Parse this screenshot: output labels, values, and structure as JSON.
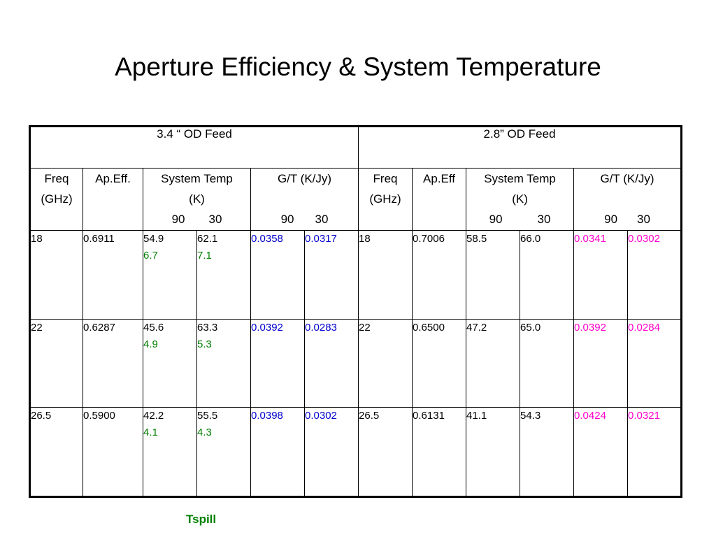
{
  "title": "Aperture Efficiency & System Temperature",
  "feeds": {
    "left": "3.4 “ OD Feed",
    "right": "2.8” OD Feed"
  },
  "headers": {
    "left": {
      "freq_1": "Freq",
      "freq_2": "(GHz)",
      "ap": "Ap.Eff.",
      "sys_1": "System Temp",
      "sys_2": "(K)",
      "gt": "G/T (K/Jy)",
      "t90": "90",
      "t30": "30",
      "g90": "90",
      "g30": "30"
    },
    "right": {
      "freq_1": "Freq",
      "freq_2": "(GHz)",
      "ap": "Ap.Eff",
      "sys_1": "System Temp",
      "sys_2": "(K)",
      "t90": "90",
      "t30": "30",
      "gt": "G/T (K/Jy)",
      "g90": "90",
      "g30": "30"
    }
  },
  "rows": [
    {
      "l_freq": "18",
      "l_ap": "0.6911",
      "l_t90": "54.9",
      "l_s90": "6.7",
      "l_t30": "62.1",
      "l_s30": "7.1",
      "l_g90": "0.0358",
      "l_g30": "0.0317",
      "r_freq": "18",
      "r_ap": "0.7006",
      "r_t90": "58.5",
      "r_t30": "66.0",
      "r_g90": "0.0341",
      "r_g30": "0.0302"
    },
    {
      "l_freq": "22",
      "l_ap": "0.6287",
      "l_t90": "45.6",
      "l_s90": "4.9",
      "l_t30": "63.3",
      "l_s30": "5.3",
      "l_g90": "0.0392",
      "l_g30": "0.0283",
      "r_freq": "22",
      "r_ap": "0.6500",
      "r_t90": "47.2",
      "r_t30": "65.0",
      "r_g90": "0.0392",
      "r_g30": "0.0284"
    },
    {
      "l_freq": "26.5",
      "l_ap": "0.5900",
      "l_t90": "42.2",
      "l_s90": "4.1",
      "l_t30": "55.5",
      "l_s30": "4.3",
      "l_g90": "0.0398",
      "l_g30": "0.0302",
      "r_freq": "26.5",
      "r_ap": "0.6131",
      "r_t90": "41.1",
      "r_t30": "54.3",
      "r_g90": "0.0424",
      "r_g30": "0.0321"
    }
  ],
  "caption": "Tspill",
  "colors": {
    "left_gt": "#0000cc",
    "right_gt": "#ff00cc",
    "tspill": "#008000"
  }
}
